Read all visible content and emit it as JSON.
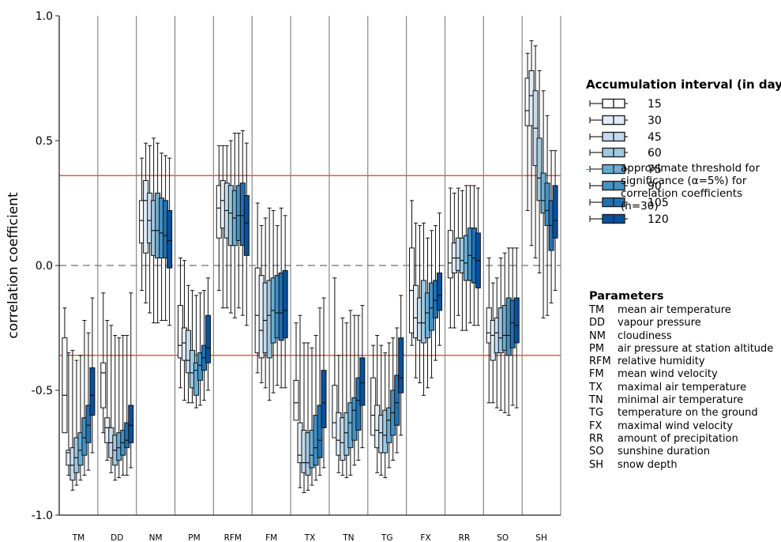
{
  "chart_data": {
    "type": "box",
    "ylabel": "correlation coefficient",
    "ylim": [
      -1.0,
      1.0
    ],
    "yticks": [
      "1.0",
      "0.5",
      "0.0",
      "-0.5",
      "-1.0"
    ],
    "categories": [
      "TM",
      "DD",
      "NM",
      "PM",
      "RFM",
      "FM",
      "TX",
      "TN",
      "TG",
      "FX",
      "RR",
      "SO",
      "SH"
    ],
    "threshold": 0.36,
    "threshold_label": "approximate threshold for significance (α=5%) for correlation coefficients (n=30)",
    "series": [
      {
        "name": "15",
        "color": "#ffffff"
      },
      {
        "name": "30",
        "color": "#e1edf7"
      },
      {
        "name": "45",
        "color": "#c6dbef"
      },
      {
        "name": "60",
        "color": "#9ecae1"
      },
      {
        "name": "75",
        "color": "#6baed6"
      },
      {
        "name": "90",
        "color": "#4292c6"
      },
      {
        "name": "105",
        "color": "#2171b5"
      },
      {
        "name": "120",
        "color": "#08519c"
      }
    ],
    "groups": {
      "TM": [
        [
          -0.58,
          -0.67,
          -0.52,
          -0.29,
          -0.17
        ],
        [
          -0.84,
          -0.8,
          -0.75,
          -0.74,
          -0.35
        ],
        [
          -0.9,
          -0.86,
          -0.8,
          -0.73,
          -0.34
        ],
        [
          -0.88,
          -0.83,
          -0.77,
          -0.69,
          -0.38
        ],
        [
          -0.86,
          -0.8,
          -0.74,
          -0.67,
          -0.36
        ],
        [
          -0.84,
          -0.76,
          -0.69,
          -0.61,
          -0.22
        ],
        [
          -0.82,
          -0.71,
          -0.64,
          -0.56,
          -0.27
        ],
        [
          -0.75,
          -0.6,
          -0.52,
          -0.41,
          -0.13
        ]
      ],
      "DD": [
        [
          -0.67,
          -0.57,
          -0.43,
          -0.39,
          -0.11
        ],
        [
          -0.78,
          -0.71,
          -0.65,
          -0.61,
          -0.22
        ],
        [
          -0.83,
          -0.77,
          -0.71,
          -0.65,
          -0.24
        ],
        [
          -0.86,
          -0.8,
          -0.74,
          -0.68,
          -0.28
        ],
        [
          -0.85,
          -0.78,
          -0.73,
          -0.67,
          -0.29
        ],
        [
          -0.84,
          -0.76,
          -0.71,
          -0.66,
          -0.28
        ],
        [
          -0.84,
          -0.73,
          -0.7,
          -0.63,
          -0.28
        ],
        [
          -0.81,
          -0.71,
          -0.64,
          -0.56,
          -0.11
        ]
      ],
      "NM": [
        [
          -0.1,
          0.09,
          0.18,
          0.26,
          0.43
        ],
        [
          -0.15,
          0.05,
          0.26,
          0.34,
          0.49
        ],
        [
          -0.19,
          0.09,
          0.18,
          0.29,
          0.48
        ],
        [
          -0.23,
          0.04,
          0.14,
          0.26,
          0.51
        ],
        [
          -0.23,
          0.03,
          0.14,
          0.29,
          0.49
        ],
        [
          -0.22,
          0.03,
          0.13,
          0.27,
          0.45
        ],
        [
          -0.22,
          0.03,
          0.12,
          0.26,
          0.44
        ],
        [
          -0.24,
          -0.01,
          0.1,
          0.22,
          0.43
        ]
      ],
      "PM": [
        [
          -0.49,
          -0.37,
          -0.32,
          -0.16,
          0.03
        ],
        [
          -0.54,
          -0.38,
          -0.31,
          -0.25,
          0.02
        ],
        [
          -0.55,
          -0.43,
          -0.38,
          -0.26,
          -0.08
        ],
        [
          -0.55,
          -0.49,
          -0.43,
          -0.34,
          -0.1
        ],
        [
          -0.57,
          -0.52,
          -0.42,
          -0.39,
          -0.12
        ],
        [
          -0.56,
          -0.46,
          -0.4,
          -0.35,
          -0.11
        ],
        [
          -0.54,
          -0.42,
          -0.37,
          -0.32,
          -0.1
        ],
        [
          -0.5,
          -0.39,
          -0.33,
          -0.2,
          -0.05
        ]
      ],
      "RFM": [
        [
          -0.1,
          0.11,
          0.23,
          0.32,
          0.48
        ],
        [
          -0.17,
          0.15,
          0.26,
          0.34,
          0.48
        ],
        [
          -0.17,
          0.11,
          0.22,
          0.33,
          0.48
        ],
        [
          -0.19,
          0.08,
          0.21,
          0.32,
          0.5
        ],
        [
          -0.21,
          0.08,
          0.19,
          0.3,
          0.53
        ],
        [
          -0.17,
          0.1,
          0.2,
          0.32,
          0.53
        ],
        [
          -0.2,
          0.08,
          0.2,
          0.33,
          0.54
        ],
        [
          -0.24,
          0.04,
          0.17,
          0.28,
          0.49
        ]
      ],
      "FM": [
        [
          -0.43,
          -0.35,
          -0.2,
          -0.01,
          0.25
        ],
        [
          -0.47,
          -0.37,
          -0.26,
          -0.04,
          0.16
        ],
        [
          -0.49,
          -0.35,
          -0.22,
          -0.07,
          0.19
        ],
        [
          -0.54,
          -0.37,
          -0.2,
          -0.06,
          0.23
        ],
        [
          -0.51,
          -0.31,
          -0.18,
          -0.05,
          0.22
        ],
        [
          -0.48,
          -0.29,
          -0.19,
          -0.04,
          0.16
        ],
        [
          -0.49,
          -0.3,
          -0.19,
          -0.03,
          0.23
        ],
        [
          -0.49,
          -0.29,
          -0.18,
          -0.02,
          0.2
        ]
      ],
      "TX": [
        [
          -0.56,
          -0.62,
          -0.55,
          -0.46,
          -0.23
        ],
        [
          -0.89,
          -0.79,
          -0.76,
          -0.63,
          -0.2
        ],
        [
          -0.91,
          -0.83,
          -0.79,
          -0.66,
          -0.31
        ],
        [
          -0.9,
          -0.84,
          -0.79,
          -0.67,
          -0.31
        ],
        [
          -0.88,
          -0.81,
          -0.76,
          -0.66,
          -0.33
        ],
        [
          -0.86,
          -0.8,
          -0.73,
          -0.6,
          -0.28
        ],
        [
          -0.84,
          -0.77,
          -0.7,
          -0.56,
          -0.17
        ],
        [
          -0.81,
          -0.65,
          -0.55,
          -0.42,
          -0.13
        ]
      ],
      "TN": [
        [
          -0.61,
          -0.69,
          -0.63,
          -0.48,
          -0.05
        ],
        [
          -0.83,
          -0.76,
          -0.7,
          -0.59,
          -0.36
        ],
        [
          -0.84,
          -0.78,
          -0.71,
          -0.61,
          -0.21
        ],
        [
          -0.85,
          -0.76,
          -0.67,
          -0.59,
          -0.23
        ],
        [
          -0.84,
          -0.73,
          -0.63,
          -0.55,
          -0.18
        ],
        [
          -0.8,
          -0.7,
          -0.58,
          -0.53,
          -0.2
        ],
        [
          -0.78,
          -0.66,
          -0.54,
          -0.45,
          -0.2
        ],
        [
          -0.73,
          -0.56,
          -0.47,
          -0.37,
          -0.16
        ]
      ],
      "TG": [
        [
          -0.62,
          -0.68,
          -0.6,
          -0.45,
          -0.32
        ],
        [
          -0.83,
          -0.73,
          -0.66,
          -0.56,
          -0.28
        ],
        [
          -0.84,
          -0.75,
          -0.67,
          -0.6,
          -0.32
        ],
        [
          -0.85,
          -0.75,
          -0.68,
          -0.58,
          -0.35
        ],
        [
          -0.81,
          -0.71,
          -0.62,
          -0.57,
          -0.31
        ],
        [
          -0.78,
          -0.68,
          -0.59,
          -0.5,
          -0.29
        ],
        [
          -0.75,
          -0.64,
          -0.55,
          -0.44,
          -0.25
        ],
        [
          -0.68,
          -0.51,
          -0.45,
          -0.29,
          -0.12
        ]
      ],
      "FX": [
        [
          -0.32,
          -0.27,
          -0.1,
          0.07,
          0.26
        ],
        [
          -0.45,
          -0.29,
          -0.21,
          -0.08,
          0.17
        ],
        [
          -0.47,
          -0.3,
          -0.23,
          -0.13,
          0.16
        ],
        [
          -0.52,
          -0.31,
          -0.23,
          -0.06,
          0.17
        ],
        [
          -0.49,
          -0.29,
          -0.19,
          -0.11,
          0.11
        ],
        [
          -0.45,
          -0.26,
          -0.17,
          -0.07,
          0.14
        ],
        [
          -0.38,
          -0.21,
          -0.14,
          -0.06,
          0.16
        ],
        [
          -0.32,
          -0.18,
          -0.12,
          -0.03,
          0.21
        ]
      ],
      "RR": [
        [
          -0.25,
          -0.05,
          0.01,
          0.14,
          0.31
        ],
        [
          -0.25,
          -0.03,
          0.03,
          0.09,
          0.29
        ],
        [
          -0.2,
          -0.02,
          0.03,
          0.11,
          0.31
        ],
        [
          -0.26,
          -0.03,
          0.02,
          0.11,
          0.3
        ],
        [
          -0.26,
          -0.06,
          0.01,
          0.12,
          0.32
        ],
        [
          -0.23,
          -0.06,
          0.04,
          0.15,
          0.32
        ],
        [
          -0.24,
          -0.07,
          0.03,
          0.15,
          0.32
        ],
        [
          -0.24,
          -0.09,
          0.02,
          0.13,
          0.31
        ]
      ],
      "SO": [
        [
          -0.55,
          -0.31,
          -0.27,
          -0.17,
          0.03
        ],
        [
          -0.55,
          -0.38,
          -0.28,
          -0.22,
          -0.07
        ],
        [
          -0.57,
          -0.35,
          -0.27,
          -0.21,
          -0.05
        ],
        [
          -0.58,
          -0.35,
          -0.29,
          -0.17,
          0.03
        ],
        [
          -0.59,
          -0.34,
          -0.28,
          -0.16,
          0.05
        ],
        [
          -0.6,
          -0.36,
          -0.28,
          -0.13,
          0.07
        ],
        [
          -0.56,
          -0.33,
          -0.23,
          -0.14,
          0.07
        ],
        [
          -0.57,
          -0.31,
          -0.24,
          -0.13,
          0.07
        ]
      ],
      "SH": [
        [
          0.22,
          0.56,
          0.62,
          0.75,
          0.85
        ],
        [
          0.08,
          0.56,
          0.68,
          0.78,
          0.9
        ],
        [
          0.03,
          0.4,
          0.55,
          0.7,
          0.88
        ],
        [
          -0.03,
          0.26,
          0.35,
          0.51,
          0.78
        ],
        [
          -0.21,
          0.21,
          0.26,
          0.37,
          0.7
        ],
        [
          -0.2,
          0.16,
          0.22,
          0.33,
          0.6
        ],
        [
          -0.15,
          0.06,
          0.16,
          0.26,
          0.46
        ],
        [
          -0.1,
          0.11,
          0.18,
          0.32,
          0.46
        ]
      ]
    }
  },
  "legend": {
    "title": "Accumulation interval (in days)",
    "items": [
      "15",
      "30",
      "45",
      "60",
      "75",
      "90",
      "105",
      "120"
    ],
    "threshold_text": "approximate threshold for significance (α=5%) for correlation coefficients (n=30)"
  },
  "parameters": {
    "title": "Parameters",
    "items": [
      {
        "code": "TM",
        "desc": "mean air temperature"
      },
      {
        "code": "DD",
        "desc": "vapour pressure"
      },
      {
        "code": "NM",
        "desc": "cloudiness"
      },
      {
        "code": "PM",
        "desc": "air pressure at station altitude"
      },
      {
        "code": "RFM",
        "desc": "relative humidity"
      },
      {
        "code": "FM",
        "desc": "mean wind velocity"
      },
      {
        "code": "TX",
        "desc": "maximal air temperature"
      },
      {
        "code": "TN",
        "desc": "minimal air temperature"
      },
      {
        "code": "TG",
        "desc": "temperature on the ground"
      },
      {
        "code": "FX",
        "desc": "maximal wind velocity"
      },
      {
        "code": "RR",
        "desc": "amount of precipitation"
      },
      {
        "code": "SO",
        "desc": "sunshine duration"
      },
      {
        "code": "SH",
        "desc": "snow depth"
      }
    ]
  }
}
